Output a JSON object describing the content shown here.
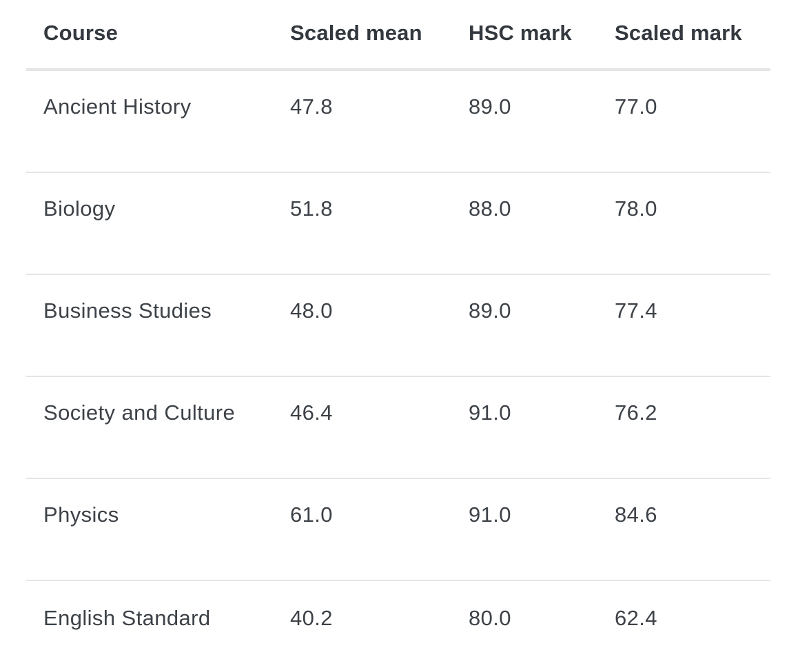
{
  "table": {
    "columns": [
      "Course",
      "Scaled mean",
      "HSC mark",
      "Scaled mark"
    ],
    "rows": [
      [
        "Ancient History",
        "47.8",
        "89.0",
        "77.0"
      ],
      [
        "Biology",
        "51.8",
        "88.0",
        "78.0"
      ],
      [
        "Business Studies",
        "48.0",
        "89.0",
        "77.4"
      ],
      [
        "Society and Culture",
        "46.4",
        "91.0",
        "76.2"
      ],
      [
        "Physics",
        "61.0",
        "91.0",
        "84.6"
      ],
      [
        "English Standard",
        "40.2",
        "80.0",
        "62.4"
      ]
    ]
  }
}
